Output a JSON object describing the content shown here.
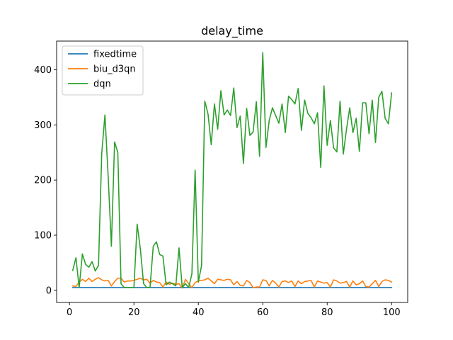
{
  "chart_data": {
    "type": "line",
    "title": "delay_time",
    "xlabel": "",
    "ylabel": "",
    "xlim": [
      -4,
      105
    ],
    "ylim": [
      -22,
      452
    ],
    "xticks": [
      0,
      20,
      40,
      60,
      80,
      100
    ],
    "yticks": [
      0,
      100,
      200,
      300,
      400
    ],
    "grid": false,
    "legend_position": "upper-left",
    "x": [
      1,
      2,
      3,
      4,
      5,
      6,
      7,
      8,
      9,
      10,
      11,
      12,
      13,
      14,
      15,
      16,
      17,
      18,
      19,
      20,
      21,
      22,
      23,
      24,
      25,
      26,
      27,
      28,
      29,
      30,
      31,
      32,
      33,
      34,
      35,
      36,
      37,
      38,
      39,
      40,
      41,
      42,
      43,
      44,
      45,
      46,
      47,
      48,
      49,
      50,
      51,
      52,
      53,
      54,
      55,
      56,
      57,
      58,
      59,
      60,
      61,
      62,
      63,
      64,
      65,
      66,
      67,
      68,
      69,
      70,
      71,
      72,
      73,
      74,
      75,
      76,
      77,
      78,
      79,
      80,
      81,
      82,
      83,
      84,
      85,
      86,
      87,
      88,
      89,
      90,
      91,
      92,
      93,
      94,
      95,
      96,
      97,
      98,
      99,
      100
    ],
    "series": [
      {
        "name": "fixedtime",
        "color": "#1f77b4",
        "values": [
          5,
          5,
          5,
          5,
          5,
          5,
          5,
          5,
          5,
          5,
          5,
          5,
          5,
          5,
          5,
          5,
          5,
          5,
          5,
          5,
          5,
          5,
          5,
          5,
          5,
          5,
          5,
          5,
          5,
          5,
          5,
          5,
          5,
          5,
          5,
          5,
          5,
          5,
          5,
          5,
          5,
          5,
          5,
          5,
          5,
          5,
          5,
          5,
          5,
          5,
          5,
          5,
          5,
          5,
          5,
          5,
          5,
          5,
          5,
          5,
          5,
          5,
          5,
          5,
          5,
          5,
          5,
          5,
          5,
          5,
          5,
          5,
          5,
          5,
          5,
          5,
          5,
          5,
          5,
          5,
          5,
          5,
          5,
          5,
          5,
          5,
          5,
          5,
          5,
          5,
          5,
          5,
          5,
          5,
          5,
          5,
          5,
          5,
          5,
          5
        ]
      },
      {
        "name": "biu_d3qn",
        "color": "#ff7f0e",
        "values": [
          8,
          7,
          15,
          20,
          16,
          22,
          16,
          20,
          23,
          19,
          17,
          18,
          8,
          16,
          22,
          22,
          15,
          17,
          17,
          18,
          20,
          22,
          19,
          20,
          13,
          18,
          15,
          14,
          6,
          15,
          11,
          13,
          11,
          12,
          4,
          20,
          12,
          5,
          14,
          17,
          18,
          19,
          22,
          17,
          12,
          20,
          19,
          18,
          20,
          19,
          10,
          16,
          9,
          8,
          18,
          14,
          5,
          6,
          6,
          19,
          18,
          8,
          18,
          13,
          6,
          16,
          17,
          14,
          17,
          7,
          17,
          12,
          16,
          17,
          18,
          6,
          17,
          15,
          13,
          14,
          6,
          19,
          17,
          13,
          14,
          16,
          6,
          17,
          10,
          12,
          17,
          7,
          6,
          12,
          18,
          7,
          16,
          19,
          18,
          15
        ]
      },
      {
        "name": "dqn",
        "color": "#2ca02c",
        "values": [
          36,
          59,
          5,
          66,
          47,
          42,
          52,
          35,
          45,
          248,
          318,
          207,
          80,
          269,
          250,
          12,
          5,
          5,
          5,
          5,
          120,
          75,
          12,
          5,
          5,
          80,
          88,
          65,
          62,
          10,
          15,
          12,
          8,
          77,
          5,
          12,
          5,
          30,
          218,
          15,
          45,
          343,
          320,
          264,
          338,
          292,
          362,
          318,
          327,
          317,
          367,
          295,
          316,
          230,
          330,
          281,
          287,
          342,
          243,
          431,
          259,
          308,
          331,
          317,
          303,
          338,
          286,
          352,
          346,
          338,
          366,
          290,
          345,
          321,
          313,
          302,
          322,
          223,
          371,
          263,
          308,
          258,
          251,
          343,
          247,
          292,
          331,
          286,
          312,
          252,
          340,
          340,
          284,
          345,
          268,
          350,
          361,
          312,
          302,
          358
        ]
      }
    ]
  }
}
